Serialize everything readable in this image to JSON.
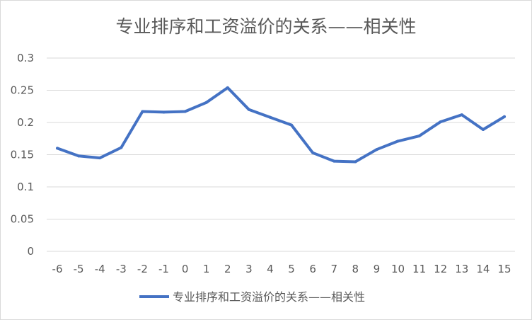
{
  "chart_data": {
    "type": "line",
    "title": "专业排序和工资溢价的关系——相关性",
    "xlabel": "",
    "ylabel": "",
    "x": [
      "-6",
      "-5",
      "-4",
      "-3",
      "-2",
      "-1",
      "0",
      "1",
      "2",
      "3",
      "4",
      "5",
      "6",
      "7",
      "8",
      "9",
      "10",
      "11",
      "12",
      "13",
      "14",
      "15"
    ],
    "series": [
      {
        "name": "专业排序和工资溢价的关系——相关性",
        "color": "#4472c4",
        "values": [
          0.16,
          0.148,
          0.145,
          0.161,
          0.217,
          0.216,
          0.217,
          0.231,
          0.254,
          0.22,
          0.208,
          0.196,
          0.153,
          0.14,
          0.139,
          0.158,
          0.171,
          0.179,
          0.201,
          0.212,
          0.189,
          0.209
        ]
      }
    ],
    "ylim": [
      0,
      0.3
    ],
    "yticks": [
      "0",
      "0.05",
      "0.1",
      "0.15",
      "0.2",
      "0.25",
      "0.3"
    ],
    "grid": true,
    "legend_position": "bottom"
  }
}
